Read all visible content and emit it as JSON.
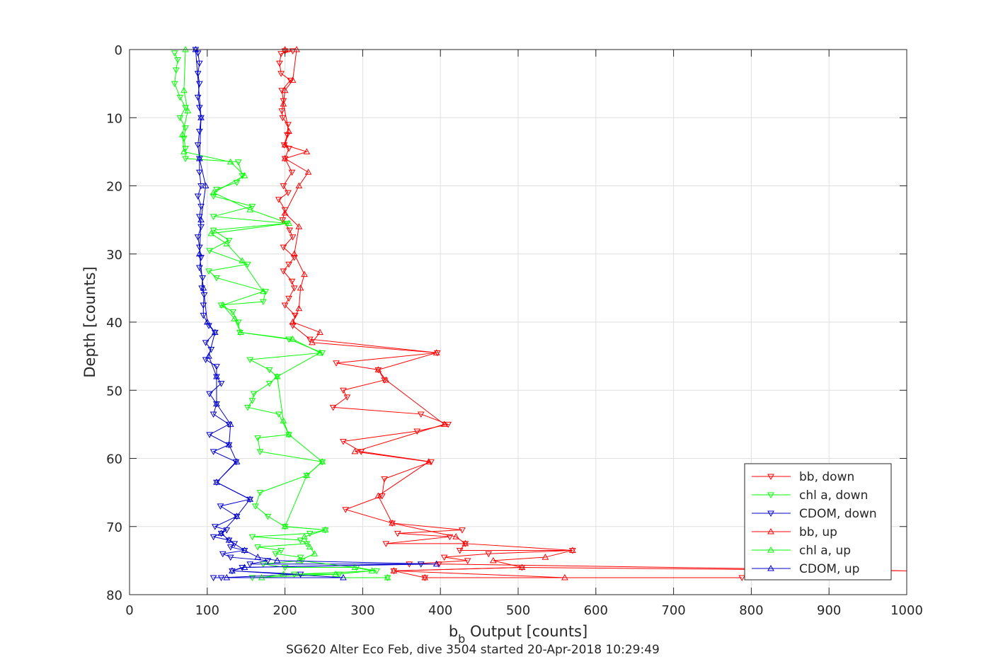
{
  "chart_data": {
    "type": "line",
    "xlabel": "b_b Output [counts]",
    "xlabel_main": "b",
    "xlabel_sub": "b",
    "xlabel_rest": " Output [counts]",
    "ylabel": "Depth [counts]",
    "caption": "SG620 Alter Eco Feb, dive 3504 started 20-Apr-2018 10:29:49",
    "xlim": [
      0,
      1000
    ],
    "ylim": [
      0,
      80
    ],
    "y_reversed": true,
    "grid": true,
    "legend_position": "bottom-right",
    "x_ticks": [
      "0",
      "100",
      "200",
      "300",
      "400",
      "500",
      "600",
      "700",
      "800",
      "900",
      "1000"
    ],
    "y_ticks": [
      "0",
      "10",
      "20",
      "30",
      "40",
      "50",
      "60",
      "70",
      "80"
    ],
    "series": [
      {
        "name": "bb, down",
        "color": "#ff0000",
        "marker": "triangle-down",
        "points": [
          [
            200,
            0.2
          ],
          [
            210,
            0.2
          ],
          [
            195,
            0.6
          ],
          [
            193,
            2
          ],
          [
            195,
            3.5
          ],
          [
            207,
            4.5
          ],
          [
            196,
            6
          ],
          [
            198,
            7.5
          ],
          [
            196,
            9
          ],
          [
            197,
            10
          ],
          [
            204,
            11
          ],
          [
            203,
            12.5
          ],
          [
            199,
            14
          ],
          [
            205,
            14.5
          ],
          [
            200,
            16
          ],
          [
            209,
            18
          ],
          [
            198,
            20
          ],
          [
            204,
            21
          ],
          [
            192,
            22
          ],
          [
            200,
            23.5
          ],
          [
            197,
            25
          ],
          [
            206,
            26.5
          ],
          [
            210,
            27.5
          ],
          [
            198,
            29
          ],
          [
            212,
            30.5
          ],
          [
            205,
            31.5
          ],
          [
            198,
            32.5
          ],
          [
            209,
            34
          ],
          [
            212,
            35
          ],
          [
            205,
            36.5
          ],
          [
            200,
            37.5
          ],
          [
            213,
            39
          ],
          [
            210,
            40.5
          ],
          [
            232,
            42.5
          ],
          [
            396,
            44.5
          ],
          [
            266,
            46
          ],
          [
            320,
            47
          ],
          [
            328,
            48.5
          ],
          [
            275,
            50
          ],
          [
            280,
            51
          ],
          [
            262,
            52.5
          ],
          [
            375,
            53.5
          ],
          [
            410,
            55
          ],
          [
            370,
            56
          ],
          [
            275,
            57.5
          ],
          [
            298,
            59
          ],
          [
            388,
            60.5
          ],
          [
            328,
            63
          ],
          [
            325,
            65.5
          ],
          [
            278,
            67.5
          ],
          [
            338,
            69.5
          ],
          [
            428,
            70.5
          ],
          [
            345,
            71
          ],
          [
            412,
            71.5
          ],
          [
            330,
            72.5
          ],
          [
            432,
            72.5
          ],
          [
            425,
            73.5
          ],
          [
            570,
            73.5
          ],
          [
            462,
            74
          ],
          [
            405,
            74.5
          ],
          [
            435,
            75
          ],
          [
            360,
            75.5
          ],
          [
            398,
            75.5
          ],
          [
            1000,
            76.5
          ],
          [
            505,
            76
          ],
          [
            340,
            76.5
          ],
          [
            380,
            77.5
          ],
          [
            788,
            77.5
          ]
        ]
      },
      {
        "name": "chl a, down",
        "color": "#00ff00",
        "marker": "triangle-down",
        "points": [
          [
            58,
            0.5
          ],
          [
            62,
            1.5
          ],
          [
            60,
            3
          ],
          [
            58,
            5
          ],
          [
            65,
            7
          ],
          [
            72,
            8.5
          ],
          [
            65,
            10
          ],
          [
            72,
            11.5
          ],
          [
            70,
            13
          ],
          [
            72,
            14.5
          ],
          [
            72,
            16
          ],
          [
            140,
            16.5
          ],
          [
            145,
            18.5
          ],
          [
            138,
            19.5
          ],
          [
            112,
            20.5
          ],
          [
            108,
            21.5
          ],
          [
            158,
            23
          ],
          [
            108,
            24.5
          ],
          [
            203,
            25.5
          ],
          [
            108,
            26.5
          ],
          [
            128,
            28
          ],
          [
            103,
            29.5
          ],
          [
            152,
            31.5
          ],
          [
            102,
            32.5
          ],
          [
            112,
            33.5
          ],
          [
            175,
            35.5
          ],
          [
            172,
            37
          ],
          [
            118,
            37.5
          ],
          [
            133,
            38.5
          ],
          [
            140,
            40
          ],
          [
            142,
            41.5
          ],
          [
            205,
            42.5
          ],
          [
            248,
            44.5
          ],
          [
            155,
            45.5
          ],
          [
            180,
            47
          ],
          [
            190,
            48
          ],
          [
            180,
            49
          ],
          [
            160,
            50.5
          ],
          [
            158,
            51.5
          ],
          [
            152,
            52.5
          ],
          [
            192,
            53.5
          ],
          [
            205,
            56.5
          ],
          [
            165,
            57
          ],
          [
            168,
            59
          ],
          [
            248,
            60.5
          ],
          [
            228,
            62.5
          ],
          [
            168,
            65
          ],
          [
            162,
            67
          ],
          [
            178,
            68.5
          ],
          [
            200,
            70
          ],
          [
            252,
            70.5
          ],
          [
            232,
            71
          ],
          [
            158,
            71.5
          ],
          [
            220,
            72
          ],
          [
            228,
            72.5
          ],
          [
            165,
            73
          ],
          [
            195,
            73.5
          ],
          [
            188,
            74
          ],
          [
            220,
            74.5
          ],
          [
            222,
            75
          ],
          [
            172,
            75.5
          ],
          [
            200,
            76
          ],
          [
            292,
            76
          ],
          [
            318,
            76.5
          ],
          [
            212,
            77
          ],
          [
            270,
            77
          ],
          [
            158,
            77.5
          ],
          [
            332,
            77.5
          ]
        ]
      },
      {
        "name": "CDOM, down",
        "color": "#0000cc",
        "marker": "triangle-down",
        "points": [
          [
            85,
            0
          ],
          [
            88,
            0.5
          ],
          [
            90,
            2
          ],
          [
            88,
            3.5
          ],
          [
            90,
            5
          ],
          [
            88,
            7
          ],
          [
            90,
            8.5
          ],
          [
            92,
            10
          ],
          [
            90,
            12
          ],
          [
            88,
            14
          ],
          [
            90,
            16
          ],
          [
            90,
            18
          ],
          [
            92,
            20
          ],
          [
            88,
            21.5
          ],
          [
            92,
            23
          ],
          [
            90,
            24.5
          ],
          [
            92,
            26
          ],
          [
            88,
            27.5
          ],
          [
            90,
            29
          ],
          [
            92,
            30.5
          ],
          [
            90,
            32
          ],
          [
            94,
            33.5
          ],
          [
            93,
            35
          ],
          [
            96,
            36
          ],
          [
            95,
            37.5
          ],
          [
            95,
            39
          ],
          [
            102,
            40.5
          ],
          [
            110,
            41.5
          ],
          [
            98,
            43
          ],
          [
            105,
            44
          ],
          [
            98,
            45.5
          ],
          [
            112,
            46.5
          ],
          [
            112,
            48
          ],
          [
            118,
            49
          ],
          [
            103,
            50.5
          ],
          [
            112,
            52
          ],
          [
            108,
            53.5
          ],
          [
            128,
            55
          ],
          [
            103,
            56.5
          ],
          [
            128,
            58
          ],
          [
            108,
            59
          ],
          [
            137,
            60.5
          ],
          [
            112,
            63.5
          ],
          [
            155,
            66
          ],
          [
            117,
            67
          ],
          [
            138,
            68.5
          ],
          [
            110,
            70
          ],
          [
            125,
            70.5
          ],
          [
            118,
            71
          ],
          [
            108,
            71.5
          ],
          [
            128,
            72
          ],
          [
            135,
            72.5
          ],
          [
            130,
            73
          ],
          [
            148,
            73.5
          ],
          [
            120,
            74
          ],
          [
            130,
            74.5
          ],
          [
            178,
            75
          ],
          [
            155,
            75.5
          ],
          [
            375,
            75.5
          ],
          [
            145,
            76
          ],
          [
            132,
            76.5
          ],
          [
            220,
            77
          ],
          [
            118,
            77.5
          ],
          [
            108,
            77.5
          ]
        ]
      },
      {
        "name": "bb, up",
        "color": "#ff0000",
        "marker": "triangle-up",
        "points": [
          [
            200,
            0
          ],
          [
            215,
            0
          ],
          [
            210,
            4.5
          ],
          [
            200,
            6
          ],
          [
            198,
            8
          ],
          [
            205,
            12
          ],
          [
            200,
            14
          ],
          [
            228,
            15
          ],
          [
            200,
            16
          ],
          [
            230,
            18
          ],
          [
            218,
            20
          ],
          [
            200,
            24
          ],
          [
            218,
            26
          ],
          [
            212,
            30
          ],
          [
            225,
            33
          ],
          [
            220,
            35
          ],
          [
            218,
            38
          ],
          [
            210,
            40
          ],
          [
            245,
            41.5
          ],
          [
            235,
            43
          ],
          [
            395,
            44.5
          ],
          [
            320,
            47
          ],
          [
            330,
            48.5
          ],
          [
            405,
            55
          ],
          [
            290,
            59
          ],
          [
            385,
            60.5
          ],
          [
            320,
            65.5
          ],
          [
            338,
            69.5
          ],
          [
            420,
            71.5
          ],
          [
            432,
            72.5
          ],
          [
            570,
            73.5
          ],
          [
            535,
            74.5
          ],
          [
            468,
            75
          ],
          [
            505,
            76
          ],
          [
            340,
            76.5
          ],
          [
            560,
            77.5
          ],
          [
            380,
            77.5
          ]
        ]
      },
      {
        "name": "chl a, up",
        "color": "#00ff00",
        "marker": "triangle-up",
        "points": [
          [
            72,
            0
          ],
          [
            70,
            6
          ],
          [
            75,
            9
          ],
          [
            68,
            12.5
          ],
          [
            70,
            15
          ],
          [
            130,
            16.5
          ],
          [
            148,
            18.5
          ],
          [
            108,
            21
          ],
          [
            155,
            23.5
          ],
          [
            205,
            25.5
          ],
          [
            105,
            27
          ],
          [
            125,
            28.5
          ],
          [
            145,
            31
          ],
          [
            172,
            35.5
          ],
          [
            120,
            37.5
          ],
          [
            135,
            39.5
          ],
          [
            143,
            41.5
          ],
          [
            210,
            42.5
          ],
          [
            245,
            44.5
          ],
          [
            190,
            48
          ],
          [
            198,
            54.5
          ],
          [
            205,
            56.5
          ],
          [
            248,
            60.5
          ],
          [
            228,
            62.5
          ],
          [
            200,
            70
          ],
          [
            252,
            70.5
          ],
          [
            225,
            71.5
          ],
          [
            232,
            73
          ],
          [
            238,
            74
          ],
          [
            218,
            75
          ],
          [
            290,
            76
          ],
          [
            312,
            76.5
          ],
          [
            265,
            77
          ],
          [
            198,
            77
          ],
          [
            170,
            77.5
          ],
          [
            332,
            77.5
          ]
        ]
      },
      {
        "name": "CDOM, up",
        "color": "#0000cc",
        "marker": "triangle-up",
        "points": [
          [
            85,
            0
          ],
          [
            92,
            10
          ],
          [
            90,
            16
          ],
          [
            98,
            20
          ],
          [
            92,
            25
          ],
          [
            90,
            30
          ],
          [
            95,
            35
          ],
          [
            100,
            40
          ],
          [
            110,
            41.5
          ],
          [
            102,
            45
          ],
          [
            112,
            48
          ],
          [
            112,
            52
          ],
          [
            130,
            55
          ],
          [
            128,
            58
          ],
          [
            138,
            60.5
          ],
          [
            112,
            63.5
          ],
          [
            155,
            66
          ],
          [
            138,
            68.5
          ],
          [
            118,
            71
          ],
          [
            128,
            72
          ],
          [
            148,
            73.5
          ],
          [
            165,
            74.5
          ],
          [
            190,
            75
          ],
          [
            395,
            75.5
          ],
          [
            148,
            76
          ],
          [
            132,
            76.5
          ],
          [
            275,
            77.5
          ],
          [
            125,
            77.5
          ]
        ]
      }
    ]
  }
}
